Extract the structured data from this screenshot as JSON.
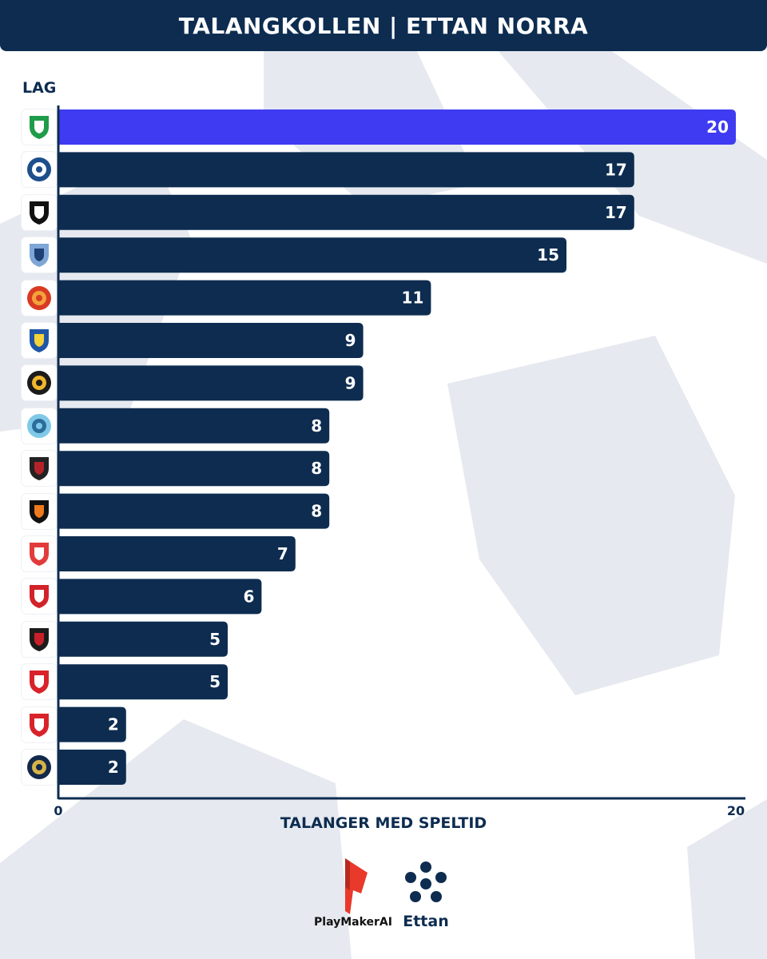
{
  "header": {
    "title": "TALANGKOLLEN | ETTAN NORRA"
  },
  "colors": {
    "navy": "#0d2c50",
    "highlight": "#3f3bf2",
    "background_shape": "#e6e9ef"
  },
  "brands": {
    "playmaker": "PlayMakerAI",
    "ettan": "Ettan"
  },
  "chart_data": {
    "type": "bar",
    "orientation": "horizontal",
    "ylabel": "LAG",
    "xlabel": "TALANGER MED SPELTID",
    "xlim": [
      0,
      20
    ],
    "x_ticks": [
      "0",
      "20"
    ],
    "grid": false,
    "categories_are_logos": true,
    "logos": [
      "ifk-green-white-crest-icon",
      "blue-round-crest-icon",
      "sfk-black-white-crest-icon",
      "afc-blue-shield-icon",
      "red-orange-round-crest-icon",
      "ifk-blue-yellow-shield-icon",
      "yellow-black-round-crest-icon",
      "umea-fc-crest-icon",
      "eagle-red-black-crest-icon",
      "black-orange-shield-icon",
      "red-white-cross-crest-icon",
      "fbk-red-shield-icon",
      "united-red-black-shield-icon",
      "red-dragon-crest-icon",
      "red-white-striped-shield-icon",
      "dark-round-emblem-icon"
    ],
    "values": [
      20,
      17,
      17,
      15,
      11,
      9,
      9,
      8,
      8,
      8,
      7,
      6,
      5,
      5,
      2,
      2
    ],
    "highlight_index": 0
  }
}
